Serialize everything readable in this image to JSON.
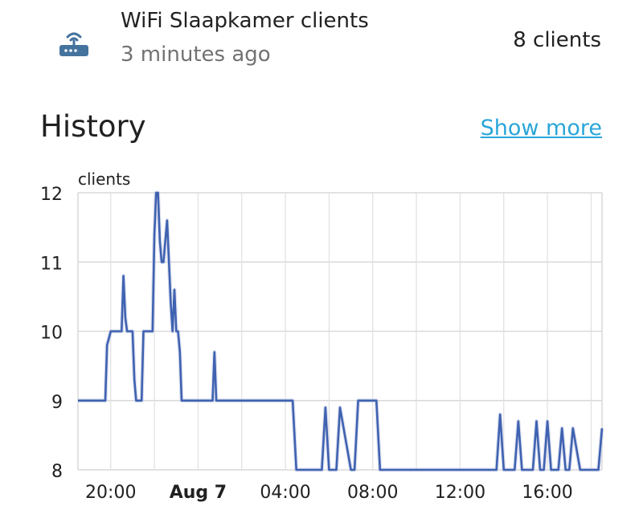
{
  "entity": {
    "name": "WiFi Slaapkamer clients",
    "updated": "3 minutes ago",
    "state": "8 clients",
    "icon": "router-wireless-icon",
    "icon_color": "#44739e"
  },
  "history": {
    "title": "History",
    "show_more_label": "Show more",
    "link_color": "#2aa6d8"
  },
  "chart_data": {
    "type": "line",
    "title": "",
    "ylabel": "clients",
    "xlabel": "",
    "ylim": [
      8,
      12
    ],
    "y_ticks": [
      "12",
      "11",
      "10",
      "9",
      "8"
    ],
    "x_tick_labels": [
      "20:00",
      "Aug 7",
      "04:00",
      "08:00",
      "12:00",
      "16:00"
    ],
    "x_range_hours": [
      "Aug 6 18:30",
      "Aug 7 18:30"
    ],
    "grid": true,
    "legend": "none",
    "series_color": "#3f62b0",
    "series": [
      {
        "x": [
          "18:30",
          "19:45",
          "19:50",
          "20:00",
          "20:20",
          "20:30",
          "20:35",
          "20:40",
          "20:45",
          "20:55",
          "21:00",
          "21:05",
          "21:10",
          "21:20",
          "21:25",
          "21:30",
          "21:50",
          "21:55",
          "22:00",
          "22:05",
          "22:10",
          "22:15",
          "22:20",
          "22:25",
          "22:35",
          "22:40",
          "22:45",
          "22:50",
          "22:55",
          "23:00",
          "23:05",
          "23:10",
          "23:15",
          "23:20",
          "23:25",
          "23:30",
          "23:35",
          "23:40",
          "24:00",
          "24:40",
          "24:45",
          "24:50",
          "25:00",
          "28:00",
          "28:20",
          "28:30",
          "29:40",
          "29:50",
          "30:00",
          "30:10",
          "30:20",
          "30:30",
          "31:00",
          "31:10",
          "31:20",
          "31:30",
          "32:10",
          "32:20",
          "32:30",
          "32:40",
          "33:00",
          "33:10",
          "37:40",
          "37:50",
          "38:00",
          "38:10",
          "38:30",
          "38:40",
          "38:50",
          "39:00",
          "39:20",
          "39:30",
          "39:40",
          "39:50",
          "40:00",
          "40:10",
          "40:20",
          "40:30",
          "40:40",
          "40:50",
          "41:00",
          "41:10",
          "41:30",
          "41:40",
          "41:50",
          "42:00",
          "42:20",
          "42:30"
        ],
        "y": [
          9,
          9,
          9.8,
          10,
          10,
          10,
          10.8,
          10.2,
          10,
          10,
          10,
          9.3,
          9,
          9,
          9,
          10,
          10,
          10,
          11.4,
          12,
          12,
          11.3,
          11,
          11,
          11.6,
          11,
          10.4,
          10,
          10.6,
          10,
          10,
          9.7,
          9,
          9,
          9,
          9,
          9,
          9,
          9,
          9,
          9.7,
          9,
          9,
          9,
          9,
          8,
          8,
          8.9,
          8,
          8,
          8,
          8.9,
          8,
          8,
          9,
          9,
          9,
          8,
          8,
          8,
          8,
          8,
          8,
          8.8,
          8,
          8,
          8,
          8.7,
          8,
          8,
          8,
          8.7,
          8,
          8,
          8.7,
          8,
          8,
          8,
          8.6,
          8,
          8,
          8.6,
          8,
          8,
          8,
          8,
          8,
          8.6
        ]
      }
    ]
  }
}
